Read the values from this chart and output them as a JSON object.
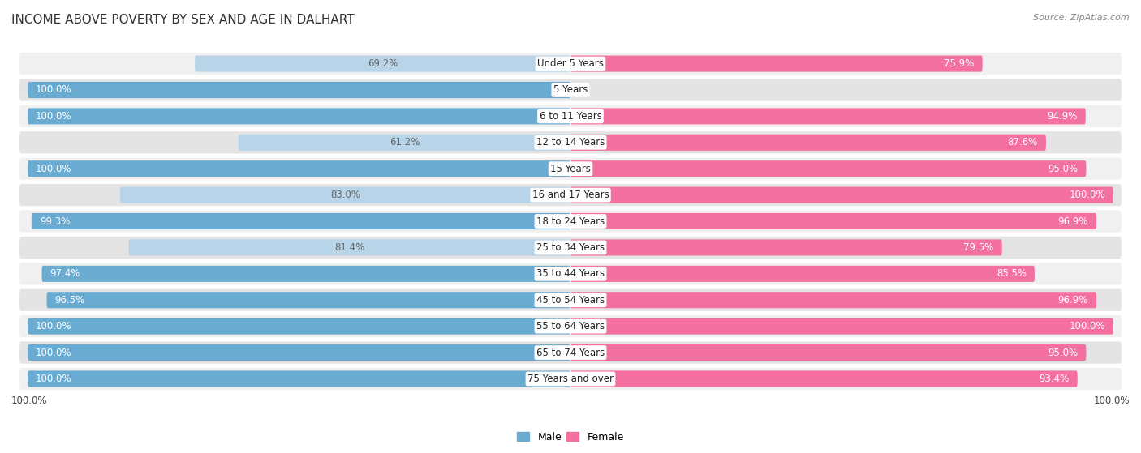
{
  "title": "INCOME ABOVE POVERTY BY SEX AND AGE IN DALHART",
  "source": "Source: ZipAtlas.com",
  "categories": [
    "Under 5 Years",
    "5 Years",
    "6 to 11 Years",
    "12 to 14 Years",
    "15 Years",
    "16 and 17 Years",
    "18 to 24 Years",
    "25 to 34 Years",
    "35 to 44 Years",
    "45 to 54 Years",
    "55 to 64 Years",
    "65 to 74 Years",
    "75 Years and over"
  ],
  "male_values": [
    69.2,
    100.0,
    100.0,
    61.2,
    100.0,
    83.0,
    99.3,
    81.4,
    97.4,
    96.5,
    100.0,
    100.0,
    100.0
  ],
  "female_values": [
    75.9,
    0.0,
    94.9,
    87.6,
    95.0,
    100.0,
    96.9,
    79.5,
    85.5,
    96.9,
    100.0,
    95.0,
    93.4
  ],
  "male_color_full": "#6aabd2",
  "male_color_light": "#b8d4e8",
  "female_color_full": "#f470a0",
  "female_color_light": "#f9b8ce",
  "row_bg_white": "#f0f0f0",
  "row_bg_light": "#e4e4e4",
  "label_color_white": "#ffffff",
  "label_color_dark": "#666666",
  "background_color": "#ffffff",
  "title_fontsize": 11,
  "label_fontsize": 8.5,
  "legend_fontsize": 9,
  "cat_fontsize": 8.5
}
